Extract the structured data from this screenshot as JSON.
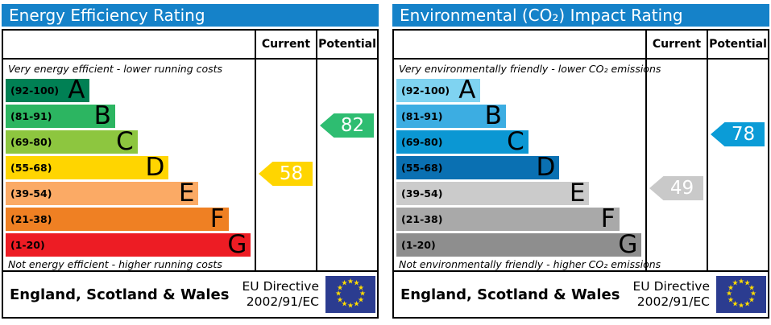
{
  "theme": {
    "header_background": "#1582c9",
    "header_text_color": "#ffffff",
    "border_color": "#000000"
  },
  "eu_flag": {
    "background": "#2b3c90",
    "star_color": "#ffdd00",
    "star_glyph": "★"
  },
  "charts": [
    {
      "title": "Energy Efficiency Rating",
      "columns": {
        "current": "Current",
        "potential": "Potential"
      },
      "top_caption": "Very energy efficient - lower running costs",
      "bottom_caption": "Not energy efficient - higher running costs",
      "bands": [
        {
          "letter": "A",
          "range": "(92-100)",
          "color": "#008054",
          "width": "33.5%"
        },
        {
          "letter": "B",
          "range": "(81-91)",
          "color": "#2cb561",
          "width": "44%"
        },
        {
          "letter": "C",
          "range": "(69-80)",
          "color": "#8dc63f",
          "width": "53%"
        },
        {
          "letter": "D",
          "range": "(55-68)",
          "color": "#ffd500",
          "width": "65.5%"
        },
        {
          "letter": "E",
          "range": "(39-54)",
          "color": "#fbaa65",
          "width": "77.5%"
        },
        {
          "letter": "F",
          "range": "(21-38)",
          "color": "#ef8023",
          "width": "89.5%"
        },
        {
          "letter": "G",
          "range": "(1-20)",
          "color": "#ed1c24",
          "width": "98.5%"
        }
      ],
      "current": {
        "value": "58",
        "color": "#ffd500"
      },
      "potential": {
        "value": "82",
        "color": "#2ebd71"
      },
      "footer": {
        "region": "England, Scotland & Wales",
        "directive_line1": "EU Directive",
        "directive_line2": "2002/91/EC"
      }
    },
    {
      "title": "Environmental (CO₂) Impact Rating",
      "columns": {
        "current": "Current",
        "potential": "Potential"
      },
      "top_caption": "Very environmentally friendly - lower CO₂ emissions",
      "bottom_caption": "Not environmentally friendly - higher CO₂ emissions",
      "bands": [
        {
          "letter": "A",
          "range": "(92-100)",
          "color": "#7fd3f1",
          "width": "33.5%"
        },
        {
          "letter": "B",
          "range": "(81-91)",
          "color": "#3cade2",
          "width": "44%"
        },
        {
          "letter": "C",
          "range": "(69-80)",
          "color": "#0b97d3",
          "width": "53%"
        },
        {
          "letter": "D",
          "range": "(55-68)",
          "color": "#0a70b2",
          "width": "65.5%"
        },
        {
          "letter": "E",
          "range": "(39-54)",
          "color": "#cbcbcb",
          "width": "77.5%"
        },
        {
          "letter": "F",
          "range": "(21-38)",
          "color": "#a9a9a9",
          "width": "89.5%"
        },
        {
          "letter": "G",
          "range": "(1-20)",
          "color": "#8e8e8e",
          "width": "98.5%"
        }
      ],
      "current": {
        "value": "49",
        "color": "#c9c9c9"
      },
      "potential": {
        "value": "78",
        "color": "#0b9cd7"
      },
      "footer": {
        "region": "England, Scotland & Wales",
        "directive_line1": "EU Directive",
        "directive_line2": "2002/91/EC"
      }
    }
  ],
  "chart_data": [
    {
      "type": "bar",
      "title": "Energy Efficiency Rating",
      "categories": [
        "A (92-100)",
        "B (81-91)",
        "C (69-80)",
        "D (55-68)",
        "E (39-54)",
        "F (21-38)",
        "G (1-20)"
      ],
      "band_ranges": [
        [
          92,
          100
        ],
        [
          81,
          91
        ],
        [
          69,
          80
        ],
        [
          55,
          68
        ],
        [
          39,
          54
        ],
        [
          21,
          38
        ],
        [
          1,
          20
        ]
      ],
      "series": [
        {
          "name": "band-bar-relative-length-pct",
          "values": [
            33.5,
            44,
            53,
            65.5,
            77.5,
            89.5,
            98.5
          ]
        }
      ],
      "current_rating": 58,
      "current_band": "D",
      "potential_rating": 82,
      "potential_band": "B",
      "scale": [
        1,
        100
      ],
      "top_caption": "Very energy efficient - lower running costs",
      "bottom_caption": "Not energy efficient - higher running costs"
    },
    {
      "type": "bar",
      "title": "Environmental (CO₂) Impact Rating",
      "categories": [
        "A (92-100)",
        "B (81-91)",
        "C (69-80)",
        "D (55-68)",
        "E (39-54)",
        "F (21-38)",
        "G (1-20)"
      ],
      "band_ranges": [
        [
          92,
          100
        ],
        [
          81,
          91
        ],
        [
          69,
          80
        ],
        [
          55,
          68
        ],
        [
          39,
          54
        ],
        [
          21,
          38
        ],
        [
          1,
          20
        ]
      ],
      "series": [
        {
          "name": "band-bar-relative-length-pct",
          "values": [
            33.5,
            44,
            53,
            65.5,
            77.5,
            89.5,
            98.5
          ]
        }
      ],
      "current_rating": 49,
      "current_band": "E",
      "potential_rating": 78,
      "potential_band": "C",
      "scale": [
        1,
        100
      ],
      "top_caption": "Very environmentally friendly - lower CO₂ emissions",
      "bottom_caption": "Not environmentally friendly - higher CO₂ emissions"
    }
  ]
}
